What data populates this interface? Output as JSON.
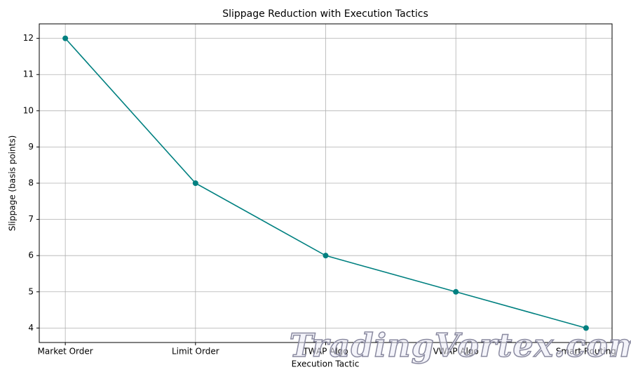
{
  "chart_data": {
    "type": "line",
    "title": "Slippage Reduction with Execution Tactics",
    "x_label": "Execution Tactic",
    "y_label": "Slippage (basis points)",
    "categories": [
      "Market Order",
      "Limit Order",
      "TWAP Algo",
      "VWAP Algo",
      "Smart Routing"
    ],
    "values": [
      12,
      8,
      6,
      5,
      4
    ],
    "color": "#008080",
    "ylim": [
      3.6,
      12.4
    ],
    "yticks": [
      4,
      5,
      6,
      7,
      8,
      9,
      10,
      11,
      12
    ],
    "grid": true,
    "watermark": "TradingVortex.com"
  }
}
